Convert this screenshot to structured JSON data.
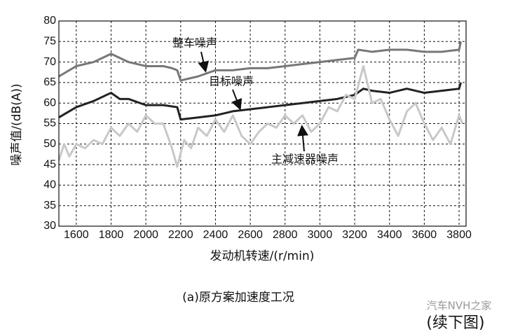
{
  "chart_data": {
    "type": "line",
    "x_label": "发动机转速/(r/min)",
    "y_label": "噪声值/(dB(A))",
    "caption": "(a)原方案加速度工况",
    "watermark": "汽车NVH之家",
    "continued": "(续下图)",
    "xlim": [
      1500,
      3840
    ],
    "ylim": [
      30,
      80
    ],
    "xticks": [
      1600,
      1800,
      2000,
      2200,
      2400,
      2600,
      2800,
      3000,
      3200,
      3400,
      3600,
      3800
    ],
    "yticks": [
      30,
      35,
      40,
      45,
      50,
      55,
      60,
      65,
      70,
      75,
      80
    ],
    "grid": true,
    "series": [
      {
        "name": "整车噪声",
        "color": "#777777",
        "x": [
          1500,
          1600,
          1700,
          1800,
          1900,
          2000,
          2100,
          2150,
          2180,
          2200,
          2300,
          2400,
          2500,
          2600,
          2700,
          2800,
          2900,
          3000,
          3100,
          3200,
          3220,
          3300,
          3400,
          3500,
          3600,
          3700,
          3800,
          3810
        ],
        "values": [
          66.5,
          69,
          70,
          72,
          70,
          69,
          69,
          68.5,
          68,
          65.5,
          66.5,
          68,
          68,
          68.5,
          68.5,
          69,
          69.5,
          70,
          70.5,
          71,
          73,
          72.5,
          73,
          73,
          72.5,
          72.5,
          73,
          75
        ]
      },
      {
        "name": "目标噪声",
        "color": "#222222",
        "x": [
          1500,
          1600,
          1700,
          1800,
          1850,
          1900,
          2000,
          2100,
          2180,
          2200,
          2300,
          2400,
          2500,
          2600,
          2700,
          2800,
          2900,
          3000,
          3100,
          3200,
          3250,
          3300,
          3400,
          3500,
          3600,
          3700,
          3800,
          3810
        ],
        "values": [
          56.5,
          59,
          60.5,
          62.5,
          61,
          61,
          59.5,
          59.5,
          59,
          56,
          56.5,
          57,
          58,
          58.5,
          59,
          59.5,
          60,
          60.5,
          61,
          62,
          63.5,
          63,
          62.5,
          63.5,
          62.5,
          63,
          63.5,
          65
        ]
      },
      {
        "name": "主减速器噪声",
        "color": "#c8c8c8",
        "x": [
          1500,
          1530,
          1560,
          1600,
          1650,
          1700,
          1750,
          1800,
          1850,
          1900,
          1950,
          2000,
          2050,
          2100,
          2150,
          2180,
          2220,
          2260,
          2300,
          2350,
          2400,
          2450,
          2500,
          2550,
          2600,
          2650,
          2700,
          2750,
          2800,
          2850,
          2900,
          2950,
          3000,
          3050,
          3100,
          3150,
          3200,
          3250,
          3300,
          3350,
          3400,
          3450,
          3500,
          3550,
          3600,
          3650,
          3700,
          3750,
          3800,
          3820
        ],
        "values": [
          46,
          50,
          47,
          50,
          49,
          51,
          50,
          54,
          52,
          55,
          53,
          57,
          55,
          55,
          49,
          44.5,
          51,
          49,
          54,
          52,
          56,
          53,
          57,
          52,
          50,
          53,
          55,
          54,
          57,
          55,
          57,
          53,
          55,
          59,
          58,
          62,
          61,
          69,
          60,
          61,
          56,
          52,
          58,
          60,
          55,
          51,
          54,
          50,
          57,
          55
        ]
      }
    ]
  }
}
